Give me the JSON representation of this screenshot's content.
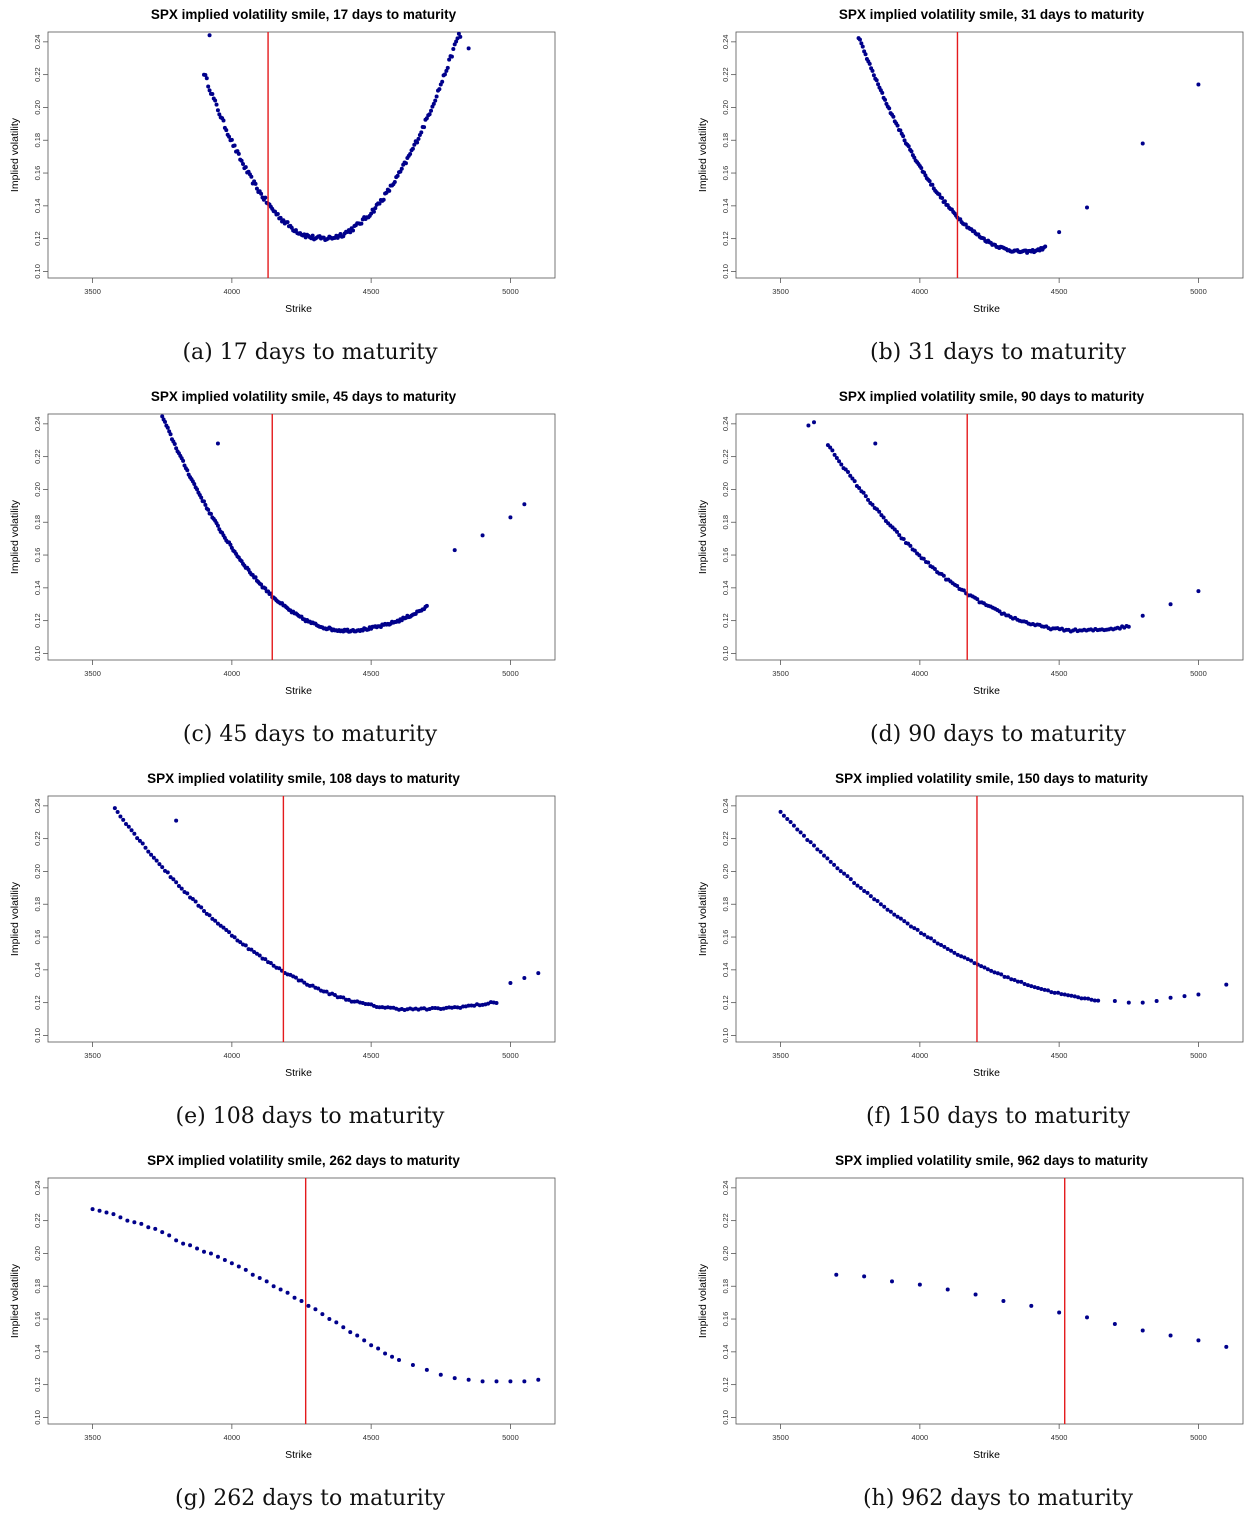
{
  "figure": {
    "captions": [
      "(a) 17 days to maturity",
      "(b) 31 days to maturity",
      "(c) 45 days to maturity",
      "(d) 90 days to maturity",
      "(e) 108 days to maturity",
      "(f) 150 days to maturity",
      "(g) 262 days to maturity",
      "(h) 962 days to maturity"
    ]
  },
  "colors": {
    "points": "#00008b",
    "spot_line": "#e41a1c",
    "frame": "#555555"
  },
  "chart_data": [
    {
      "type": "scatter",
      "title": "SPX implied volatility smile, 17 days to maturity",
      "xlabel": "Strike",
      "ylabel": "Implied volatility",
      "xlim": [
        3340,
        5160
      ],
      "ylim": [
        0.096,
        0.246
      ],
      "xticks": [
        "3500",
        "4000",
        "4500",
        "5000"
      ],
      "yticks": [
        "0.10",
        "0.12",
        "0.14",
        "0.16",
        "0.18",
        "0.20",
        "0.22",
        "0.24"
      ],
      "spot_line": 4130,
      "curve": {
        "min_x": 4325,
        "min_y": 0.12,
        "a": 5.6e-07,
        "b": 5.2e-07,
        "x_start": 3900,
        "x_end": 4850,
        "step": 5,
        "jitter": 0.0015
      },
      "outliers": [
        [
          4820,
          0.243
        ],
        [
          4850,
          0.236
        ],
        [
          3920,
          0.244
        ]
      ]
    },
    {
      "type": "scatter",
      "title": "SPX implied volatility smile, 31 days to maturity",
      "xlabel": "Strike",
      "ylabel": "Implied volatility",
      "xlim": [
        3340,
        5160
      ],
      "ylim": [
        0.096,
        0.246
      ],
      "xticks": [
        "3500",
        "4000",
        "4500",
        "5000"
      ],
      "yticks": [
        "0.10",
        "0.12",
        "0.14",
        "0.16",
        "0.18",
        "0.20",
        "0.22",
        "0.24"
      ],
      "spot_line": 4135,
      "curve": {
        "min_x": 4375,
        "min_y": 0.112,
        "a": 3.7e-07,
        "b": 4.5e-07,
        "x_start": 3780,
        "x_end": 4450,
        "step": 5,
        "jitter": 0.0008
      },
      "outliers": [
        [
          4500,
          0.124
        ],
        [
          4600,
          0.139
        ],
        [
          4800,
          0.178
        ],
        [
          5000,
          0.214
        ]
      ]
    },
    {
      "type": "scatter",
      "title": "SPX implied volatility smile, 45 days to maturity",
      "xlabel": "Strike",
      "ylabel": "Implied volatility",
      "xlim": [
        3340,
        5160
      ],
      "ylim": [
        0.096,
        0.246
      ],
      "xticks": [
        "3500",
        "4000",
        "4500",
        "5000"
      ],
      "yticks": [
        "0.10",
        "0.12",
        "0.14",
        "0.16",
        "0.18",
        "0.20",
        "0.22",
        "0.24"
      ],
      "spot_line": 4145,
      "curve": {
        "min_x": 4410,
        "min_y": 0.114,
        "a": 3e-07,
        "b": 1.7e-07,
        "x_start": 3730,
        "x_end": 4700,
        "step": 5,
        "jitter": 0.0008
      },
      "outliers": [
        [
          3950,
          0.228
        ],
        [
          4800,
          0.163
        ],
        [
          4900,
          0.172
        ],
        [
          5000,
          0.183
        ],
        [
          5050,
          0.191
        ]
      ]
    },
    {
      "type": "scatter",
      "title": "SPX implied volatility smile, 90 days to maturity",
      "xlabel": "Strike",
      "ylabel": "Implied volatility",
      "xlim": [
        3340,
        5160
      ],
      "ylim": [
        0.096,
        0.246
      ],
      "xticks": [
        "3500",
        "4000",
        "4500",
        "5000"
      ],
      "yticks": [
        "0.10",
        "0.12",
        "0.14",
        "0.16",
        "0.18",
        "0.20",
        "0.22",
        "0.24"
      ],
      "spot_line": 4170,
      "curve": {
        "min_x": 4570,
        "min_y": 0.114,
        "a": 1.4e-07,
        "b": 8e-08,
        "x_start": 3670,
        "x_end": 4750,
        "step": 8,
        "jitter": 0.0007
      },
      "outliers": [
        [
          3600,
          0.239
        ],
        [
          3620,
          0.241
        ],
        [
          3840,
          0.228
        ],
        [
          4800,
          0.123
        ],
        [
          4900,
          0.13
        ],
        [
          5000,
          0.138
        ]
      ]
    },
    {
      "type": "scatter",
      "title": "SPX implied volatility smile, 108 days to maturity",
      "xlabel": "Strike",
      "ylabel": "Implied volatility",
      "xlim": [
        3340,
        5160
      ],
      "ylim": [
        0.096,
        0.246
      ],
      "xticks": [
        "3500",
        "4000",
        "4500",
        "5000"
      ],
      "yticks": [
        "0.10",
        "0.12",
        "0.14",
        "0.16",
        "0.18",
        "0.20",
        "0.22",
        "0.24"
      ],
      "spot_line": 4185,
      "curve": {
        "min_x": 4650,
        "min_y": 0.116,
        "a": 1.07e-07,
        "b": 4.74e-08,
        "x_start": 3580,
        "x_end": 4950,
        "step": 10,
        "jitter": 0.0006
      },
      "outliers": [
        [
          3800,
          0.231
        ],
        [
          5000,
          0.132
        ],
        [
          5050,
          0.135
        ],
        [
          5100,
          0.138
        ]
      ]
    },
    {
      "type": "scatter",
      "title": "SPX implied volatility smile, 150 days to maturity",
      "xlabel": "Strike",
      "ylabel": "Implied volatility",
      "xlim": [
        3340,
        5160
      ],
      "ylim": [
        0.096,
        0.246
      ],
      "xticks": [
        "3500",
        "4000",
        "4500",
        "5000"
      ],
      "yticks": [
        "0.10",
        "0.12",
        "0.14",
        "0.16",
        "0.18",
        "0.20",
        "0.22",
        "0.24"
      ],
      "spot_line": 4205,
      "curve": {
        "min_x": 4780,
        "min_y": 0.12,
        "a": 7.1e-08,
        "b": 2.2e-08,
        "x_start": 3500,
        "x_end": 4650,
        "step": 12,
        "jitter": 0.0004
      },
      "outliers": [
        [
          4700,
          0.121
        ],
        [
          4750,
          0.12
        ],
        [
          4800,
          0.12
        ],
        [
          4850,
          0.121
        ],
        [
          4900,
          0.123
        ],
        [
          4950,
          0.124
        ],
        [
          5000,
          0.125
        ],
        [
          5100,
          0.131
        ]
      ]
    },
    {
      "type": "scatter",
      "title": "SPX implied volatility smile, 262 days to maturity",
      "xlabel": "Strike",
      "ylabel": "Implied volatility",
      "xlim": [
        3340,
        5160
      ],
      "ylim": [
        0.096,
        0.246
      ],
      "xticks": [
        "3500",
        "4000",
        "4500",
        "5000"
      ],
      "yticks": [
        "0.10",
        "0.12",
        "0.14",
        "0.16",
        "0.18",
        "0.20",
        "0.22",
        "0.24"
      ],
      "spot_line": 4265,
      "points": [
        [
          3500,
          0.227
        ],
        [
          3525,
          0.226
        ],
        [
          3550,
          0.225
        ],
        [
          3575,
          0.224
        ],
        [
          3600,
          0.222
        ],
        [
          3625,
          0.22
        ],
        [
          3650,
          0.219
        ],
        [
          3675,
          0.218
        ],
        [
          3700,
          0.216
        ],
        [
          3725,
          0.215
        ],
        [
          3750,
          0.213
        ],
        [
          3775,
          0.211
        ],
        [
          3800,
          0.208
        ],
        [
          3825,
          0.206
        ],
        [
          3850,
          0.205
        ],
        [
          3875,
          0.203
        ],
        [
          3900,
          0.201
        ],
        [
          3925,
          0.2
        ],
        [
          3950,
          0.198
        ],
        [
          3975,
          0.196
        ],
        [
          4000,
          0.194
        ],
        [
          4025,
          0.192
        ],
        [
          4050,
          0.19
        ],
        [
          4075,
          0.187
        ],
        [
          4100,
          0.185
        ],
        [
          4125,
          0.183
        ],
        [
          4150,
          0.18
        ],
        [
          4175,
          0.178
        ],
        [
          4200,
          0.176
        ],
        [
          4225,
          0.173
        ],
        [
          4250,
          0.171
        ],
        [
          4275,
          0.168
        ],
        [
          4300,
          0.166
        ],
        [
          4325,
          0.163
        ],
        [
          4350,
          0.16
        ],
        [
          4375,
          0.158
        ],
        [
          4400,
          0.155
        ],
        [
          4425,
          0.152
        ],
        [
          4450,
          0.15
        ],
        [
          4475,
          0.147
        ],
        [
          4500,
          0.144
        ],
        [
          4525,
          0.142
        ],
        [
          4550,
          0.139
        ],
        [
          4575,
          0.137
        ],
        [
          4600,
          0.135
        ],
        [
          4650,
          0.132
        ],
        [
          4700,
          0.129
        ],
        [
          4750,
          0.126
        ],
        [
          4800,
          0.124
        ],
        [
          4850,
          0.123
        ],
        [
          4900,
          0.122
        ],
        [
          4950,
          0.122
        ],
        [
          5000,
          0.122
        ],
        [
          5050,
          0.122
        ],
        [
          5100,
          0.123
        ]
      ]
    },
    {
      "type": "scatter",
      "title": "SPX implied volatility smile, 962 days to maturity",
      "xlabel": "Strike",
      "ylabel": "Implied volatility",
      "xlim": [
        3340,
        5160
      ],
      "ylim": [
        0.096,
        0.246
      ],
      "xticks": [
        "3500",
        "4000",
        "4500",
        "5000"
      ],
      "yticks": [
        "0.10",
        "0.12",
        "0.14",
        "0.16",
        "0.18",
        "0.20",
        "0.22",
        "0.24"
      ],
      "spot_line": 4520,
      "points": [
        [
          3700,
          0.187
        ],
        [
          3800,
          0.186
        ],
        [
          3900,
          0.183
        ],
        [
          4000,
          0.181
        ],
        [
          4100,
          0.178
        ],
        [
          4200,
          0.175
        ],
        [
          4300,
          0.171
        ],
        [
          4400,
          0.168
        ],
        [
          4500,
          0.164
        ],
        [
          4600,
          0.161
        ],
        [
          4700,
          0.157
        ],
        [
          4800,
          0.153
        ],
        [
          4900,
          0.15
        ],
        [
          5000,
          0.147
        ],
        [
          5100,
          0.143
        ]
      ]
    }
  ]
}
